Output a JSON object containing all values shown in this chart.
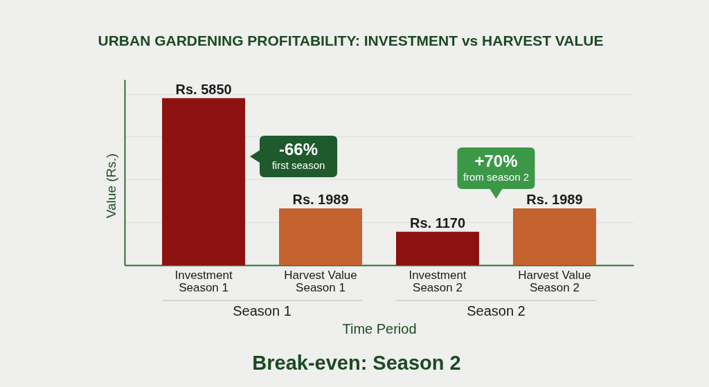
{
  "chart_data": {
    "type": "bar",
    "title": "URBAN GARDENING PROFITABILITY: INVESTMENT vs HARVEST VALUE",
    "xlabel": "Time Period",
    "ylabel": "Value (Rs.)",
    "categories": [
      "Investment\nSeason 1",
      "Harvest Value\nSeason 1",
      "Investment\nSeason 2",
      "Harvest Value\nSeason 2"
    ],
    "values": [
      5850,
      1989,
      1170,
      1989
    ],
    "colors": [
      "#8e1111",
      "#c4632e",
      "#8e1111",
      "#c4632e"
    ],
    "value_labels": [
      "Rs. 5850",
      "Rs. 1989",
      "Rs. 1170",
      "Rs. 1989"
    ],
    "ylim": [
      0,
      6500
    ],
    "yticks": [
      {
        "value": 1500,
        "label": null
      },
      {
        "value": 3000,
        "label": null
      },
      {
        "value": 4500,
        "label": null
      },
      {
        "value": 6000,
        "label": null
      }
    ],
    "grid": "y",
    "tick_labels": "x",
    "annotations": [
      "-66%\nfirst season",
      "+70%\nfrom season 2",
      "Season 1",
      "Season 2",
      "Break-even: Season 2"
    ]
  }
}
